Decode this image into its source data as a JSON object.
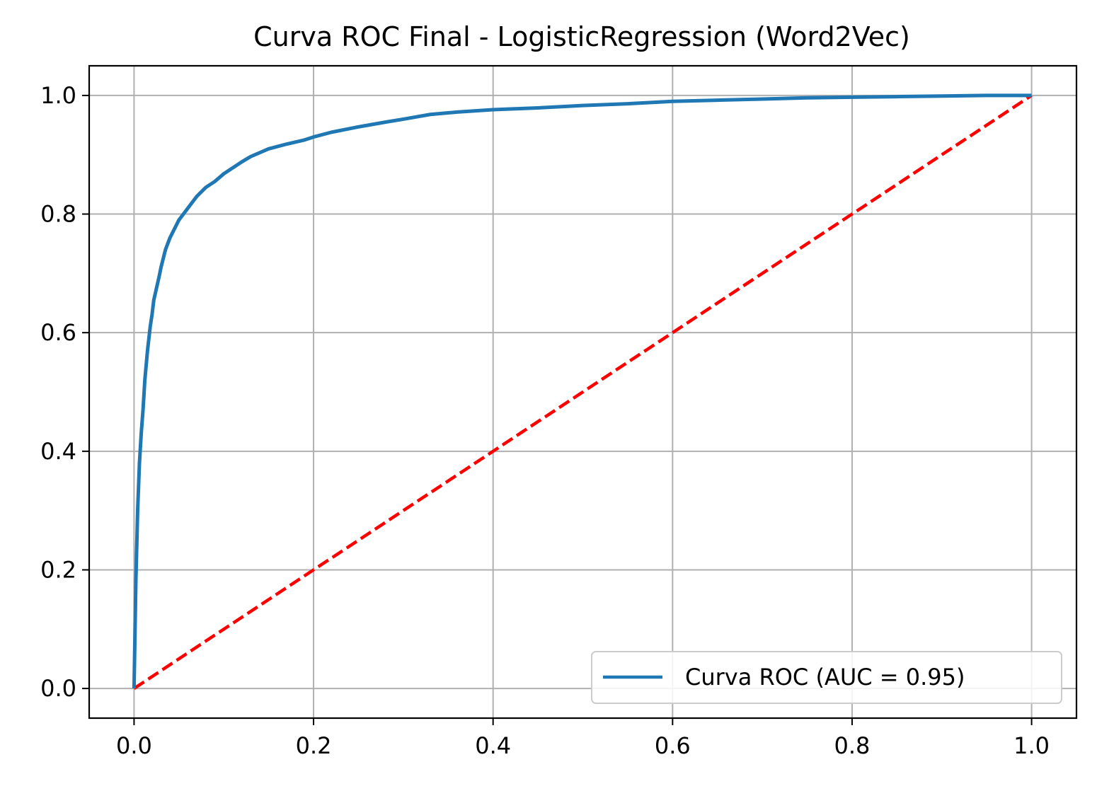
{
  "chart_data": {
    "type": "line",
    "title": "Curva ROC Final - LogisticRegression (Word2Vec)",
    "xlabel": "",
    "ylabel": "",
    "xlim": [
      -0.05,
      1.05
    ],
    "ylim": [
      -0.05,
      1.05
    ],
    "xticks": [
      0.0,
      0.2,
      0.4,
      0.6,
      0.8,
      1.0
    ],
    "yticks": [
      0.0,
      0.2,
      0.4,
      0.6,
      0.8,
      1.0
    ],
    "xtick_labels": [
      "0.0",
      "0.2",
      "0.4",
      "0.6",
      "0.8",
      "1.0"
    ],
    "ytick_labels": [
      "0.0",
      "0.2",
      "0.4",
      "0.6",
      "0.8",
      "1.0"
    ],
    "grid": true,
    "legend_position": "lower-right",
    "series": [
      {
        "name": "Curva ROC (AUC = 0.95)",
        "color": "#1f77b4",
        "style": "solid",
        "x": [
          0.0,
          0.002,
          0.004,
          0.006,
          0.008,
          0.01,
          0.012,
          0.015,
          0.018,
          0.02,
          0.022,
          0.025,
          0.028,
          0.03,
          0.035,
          0.04,
          0.045,
          0.05,
          0.055,
          0.06,
          0.07,
          0.08,
          0.09,
          0.1,
          0.11,
          0.12,
          0.13,
          0.15,
          0.17,
          0.19,
          0.2,
          0.22,
          0.25,
          0.28,
          0.3,
          0.33,
          0.36,
          0.4,
          0.45,
          0.5,
          0.55,
          0.6,
          0.65,
          0.7,
          0.75,
          0.8,
          0.85,
          0.9,
          0.95,
          1.0
        ],
        "y": [
          0.0,
          0.18,
          0.3,
          0.38,
          0.43,
          0.47,
          0.52,
          0.57,
          0.61,
          0.63,
          0.655,
          0.675,
          0.695,
          0.71,
          0.74,
          0.76,
          0.775,
          0.79,
          0.8,
          0.81,
          0.83,
          0.845,
          0.855,
          0.868,
          0.878,
          0.888,
          0.897,
          0.91,
          0.918,
          0.925,
          0.93,
          0.938,
          0.947,
          0.955,
          0.96,
          0.968,
          0.972,
          0.976,
          0.979,
          0.983,
          0.986,
          0.99,
          0.992,
          0.994,
          0.996,
          0.997,
          0.998,
          0.999,
          1.0,
          1.0
        ]
      },
      {
        "name": "",
        "color": "#ff0000",
        "style": "dashed",
        "x": [
          0.0,
          1.0
        ],
        "y": [
          0.0,
          1.0
        ]
      }
    ]
  }
}
